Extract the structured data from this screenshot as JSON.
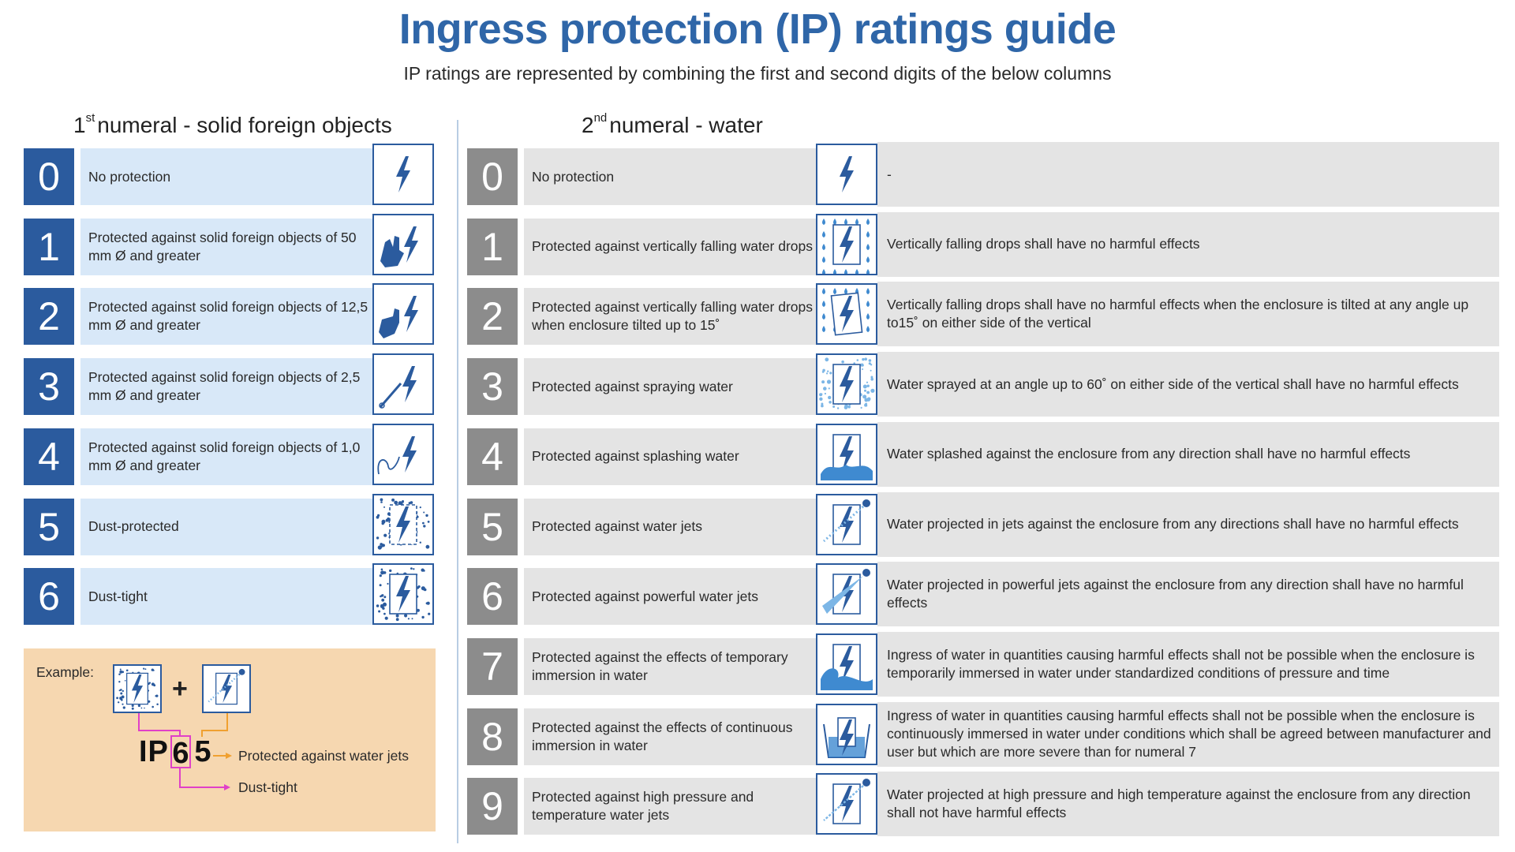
{
  "header": {
    "title": "Ingress protection (IP) ratings guide",
    "subtitle": "IP ratings are represented by combining the first and second digits of the below columns"
  },
  "left": {
    "heading_num": "1",
    "heading_sup": "st",
    "heading_text": "numeral - solid foreign objects",
    "rows": [
      {
        "num": "0",
        "text": "No protection",
        "icon": "lightning-icon"
      },
      {
        "num": "1",
        "text": "Protected against solid foreign objects of 50 mm Ø and greater",
        "icon": "hand-icon"
      },
      {
        "num": "2",
        "text": "Protected against solid foreign objects of 12,5 mm Ø and greater",
        "icon": "finger-icon"
      },
      {
        "num": "3",
        "text": "Protected against solid foreign objects of 2,5 mm Ø and greater",
        "icon": "tool-icon"
      },
      {
        "num": "4",
        "text": "Protected against solid foreign objects of 1,0 mm Ø and greater",
        "icon": "wire-icon"
      },
      {
        "num": "5",
        "text": "Dust-protected",
        "icon": "dust-protected-icon"
      },
      {
        "num": "6",
        "text": "Dust-tight",
        "icon": "dust-tight-icon"
      }
    ]
  },
  "right": {
    "heading_num": "2",
    "heading_sup": "nd",
    "heading_text": "numeral - water",
    "rows": [
      {
        "num": "0",
        "text": "No protection",
        "icon": "lightning-icon",
        "detail": "-"
      },
      {
        "num": "1",
        "text": "Protected against vertically falling water drops",
        "icon": "vertical-drops-icon",
        "detail": "Vertically falling drops shall have no harmful effects"
      },
      {
        "num": "2",
        "text": "Protected against vertically falling water drops when enclosure tilted up to 15˚",
        "icon": "tilted-drops-icon",
        "detail": "Vertically falling drops shall have no harmful effects when the enclosure is tilted at any angle up to15˚ on either side of the vertical"
      },
      {
        "num": "3",
        "text": "Protected against spraying water",
        "icon": "spray-icon",
        "detail": "Water sprayed at an angle up to 60˚ on either side of the vertical shall have no harmful effects"
      },
      {
        "num": "4",
        "text": "Protected against splashing water",
        "icon": "splash-icon",
        "detail": "Water splashed against the enclosure from any direction shall have no harmful effects"
      },
      {
        "num": "5",
        "text": "Protected against water jets",
        "icon": "water-jet-icon",
        "detail": "Water projected in jets against the enclosure from any directions shall have no harmful effects"
      },
      {
        "num": "6",
        "text": "Protected against powerful water jets",
        "icon": "powerful-jet-icon",
        "detail": "Water projected in powerful jets against the enclosure from any direction shall have no harmful effects"
      },
      {
        "num": "7",
        "text": "Protected against the effects of temporary immersion in water",
        "icon": "wave-icon",
        "detail": "Ingress of water in quantities causing harmful effects shall not be possible when the enclosure is temporarily immersed in water under standardized conditions of pressure and time"
      },
      {
        "num": "8",
        "text": "Protected against the effects of continuous immersion in water",
        "icon": "immersion-icon",
        "detail": "Ingress of water in quantities causing harmful effects shall not be possible when the enclosure is continuously immersed in water under conditions which shall be agreed between manufacturer and user but which are more severe than for numeral 7"
      },
      {
        "num": "9",
        "text": "Protected against high pressure and temperature water jets",
        "icon": "high-pressure-jet-icon",
        "detail": "Water projected at high pressure and high temperature against the enclosure from any direction shall not have harmful effects"
      }
    ]
  },
  "example": {
    "label": "Example:",
    "plus": "+",
    "prefix": "IP",
    "digit1": "6",
    "digit2": "5",
    "note_second": "Protected against water jets",
    "note_first": "Dust-tight",
    "colors": {
      "first": "#e040c8",
      "second": "#f0a030"
    }
  },
  "colors": {
    "title": "#2f66a8",
    "left_num": "#2b5b9e",
    "left_desc": "#d8e8f8",
    "right_num": "#8c8c8c",
    "right_desc": "#e4e4e4",
    "example_bg": "#f6d7b0"
  }
}
